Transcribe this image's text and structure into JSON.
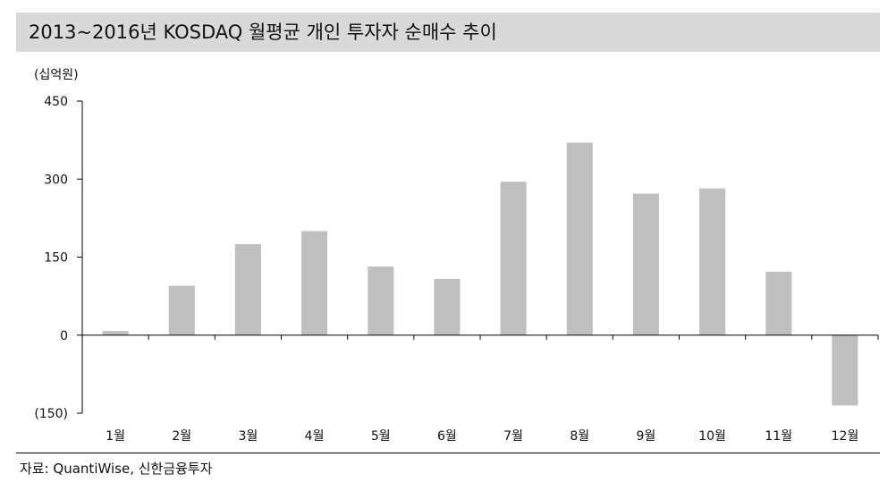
{
  "title": "2013~2016년 KOSDAQ 월평균 개인 투자자 순매수 추이",
  "source": "자료: QuantiWise, 신한금융투자",
  "colors": {
    "bar": "#bfbfbf",
    "title_background": "#d9d9d9",
    "axis": "#000000"
  },
  "chart_data": {
    "type": "bar",
    "title": "2013~2016년 KOSDAQ 월평균 개인 투자자 순매수 추이",
    "unit": "(십억원)",
    "xlabel": "",
    "ylabel": "(십억원)",
    "categories": [
      "1월",
      "2월",
      "3월",
      "4월",
      "5월",
      "6월",
      "7월",
      "8월",
      "9월",
      "10월",
      "11월",
      "12월"
    ],
    "values": [
      8,
      95,
      175,
      200,
      132,
      108,
      295,
      370,
      272,
      282,
      122,
      -135
    ],
    "ylim": [
      -150,
      450
    ],
    "yticks": [
      -150,
      0,
      150,
      300,
      450
    ],
    "ytick_labels": [
      "(150)",
      "0",
      "150",
      "300",
      "450"
    ],
    "grid": false,
    "legend": "none"
  }
}
